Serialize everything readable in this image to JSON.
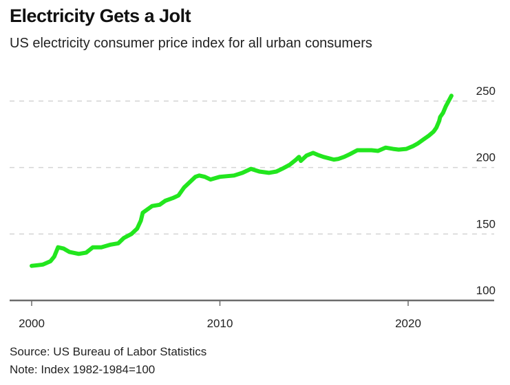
{
  "chart_data": {
    "type": "line",
    "title": "Electricity Gets a Jolt",
    "subtitle": "US electricity consumer price index for all urban consumers",
    "xlabel": "",
    "ylabel": "",
    "xlim": [
      2000,
      2023.6
    ],
    "ylim": [
      100,
      255
    ],
    "x_ticks": [
      2000,
      2010,
      2020
    ],
    "x_tick_labels": [
      "2000",
      "2010",
      "2020"
    ],
    "y_ticks": [
      100,
      150,
      200,
      250
    ],
    "y_tick_labels": [
      "100",
      "150",
      "200",
      "250"
    ],
    "y_axis_side": "right",
    "grid": "horizontal-dashed",
    "legend": "none",
    "series": [
      {
        "name": "Electricity CPI",
        "color": "#22e61e",
        "x": [
          2000.0,
          2000.3,
          2000.6,
          2001.0,
          2001.2,
          2001.4,
          2001.7,
          2002.0,
          2002.5,
          2002.9,
          2003.25,
          2003.7,
          2004.2,
          2004.6,
          2004.9,
          2005.3,
          2005.6,
          2005.8,
          2005.9,
          2006.4,
          2006.8,
          2007.1,
          2007.5,
          2007.8,
          2008.1,
          2008.4,
          2008.7,
          2008.9,
          2009.2,
          2009.5,
          2009.75,
          2010.0,
          2010.4,
          2010.75,
          2011.2,
          2011.65,
          2012.1,
          2012.6,
          2013.0,
          2013.3,
          2013.7,
          2014.05,
          2014.2,
          2014.3,
          2014.6,
          2014.95,
          2015.2,
          2015.5,
          2016.05,
          2016.3,
          2016.6,
          2016.9,
          2017.3,
          2017.7,
          2018.05,
          2018.4,
          2018.8,
          2019.2,
          2019.5,
          2019.9,
          2020.25,
          2020.5,
          2020.8,
          2021.1,
          2021.35,
          2021.5,
          2021.65,
          2021.7,
          2021.85,
          2022.0,
          2022.15,
          2022.3
        ],
        "values": [
          126,
          126.5,
          127,
          129.5,
          133,
          140,
          139,
          136.5,
          135,
          136,
          140,
          140,
          142,
          143,
          147,
          150,
          154,
          160,
          166,
          171,
          172,
          175,
          177,
          179,
          185,
          189,
          193,
          194,
          193,
          191,
          192,
          193,
          193.5,
          194,
          196,
          199,
          197,
          196,
          197,
          199,
          202,
          206,
          208,
          205,
          209,
          211,
          209.5,
          208,
          206,
          206.5,
          208,
          210,
          213,
          213,
          213,
          212.5,
          215,
          214,
          213.5,
          214,
          216,
          218,
          221,
          224,
          227,
          230,
          235,
          238,
          241,
          246,
          250,
          254
        ]
      }
    ]
  },
  "footer": {
    "source": "Source: US Bureau of Labor Statistics",
    "note": "Note: Index 1982-1984=100"
  }
}
